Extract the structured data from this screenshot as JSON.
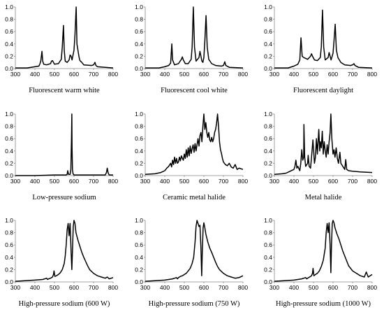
{
  "chart_data": [
    {
      "type": "line",
      "caption": "Fluorescent warm white",
      "xlim": [
        300,
        800
      ],
      "ylim": [
        0,
        1.0
      ],
      "xticks": [
        "300",
        "400",
        "500",
        "600",
        "700",
        "800"
      ],
      "yticks": [
        "0.0",
        "0.2",
        "0.4",
        "0.6",
        "0.8",
        "1.0"
      ],
      "x": [
        300,
        360,
        380,
        400,
        420,
        425,
        430,
        436,
        440,
        445,
        460,
        480,
        485,
        490,
        495,
        500,
        520,
        535,
        540,
        546,
        550,
        555,
        565,
        575,
        580,
        585,
        590,
        600,
        605,
        611,
        615,
        625,
        630,
        640,
        650,
        690,
        700,
        707,
        712,
        720,
        800
      ],
      "y": [
        0.01,
        0.01,
        0.02,
        0.03,
        0.04,
        0.07,
        0.12,
        0.28,
        0.12,
        0.07,
        0.06,
        0.08,
        0.12,
        0.13,
        0.1,
        0.07,
        0.08,
        0.15,
        0.35,
        0.7,
        0.3,
        0.12,
        0.1,
        0.14,
        0.22,
        0.2,
        0.14,
        0.3,
        0.55,
        1.0,
        0.4,
        0.2,
        0.13,
        0.1,
        0.06,
        0.05,
        0.06,
        0.1,
        0.05,
        0.03,
        0.01
      ]
    },
    {
      "type": "line",
      "caption": "Fluorescent cool white",
      "xlim": [
        300,
        800
      ],
      "ylim": [
        0,
        1.0
      ],
      "xticks": [
        "300",
        "400",
        "500",
        "600",
        "700",
        "800"
      ],
      "yticks": [
        "0.0",
        "0.2",
        "0.4",
        "0.6",
        "0.8",
        "1.0"
      ],
      "x": [
        300,
        370,
        400,
        420,
        430,
        436,
        440,
        450,
        470,
        485,
        490,
        495,
        505,
        520,
        535,
        540,
        546,
        552,
        560,
        575,
        580,
        585,
        590,
        595,
        600,
        605,
        611,
        617,
        625,
        640,
        660,
        690,
        700,
        707,
        712,
        730,
        800
      ],
      "y": [
        0.01,
        0.01,
        0.03,
        0.05,
        0.09,
        0.4,
        0.14,
        0.06,
        0.08,
        0.15,
        0.19,
        0.14,
        0.08,
        0.08,
        0.15,
        0.35,
        1.0,
        0.35,
        0.12,
        0.18,
        0.28,
        0.2,
        0.12,
        0.1,
        0.18,
        0.45,
        0.86,
        0.35,
        0.15,
        0.08,
        0.05,
        0.04,
        0.05,
        0.11,
        0.05,
        0.02,
        0.01
      ]
    },
    {
      "type": "line",
      "caption": "Fluorescent daylight",
      "xlim": [
        300,
        800
      ],
      "ylim": [
        0,
        1.0
      ],
      "xticks": [
        "300",
        "400",
        "500",
        "600",
        "700",
        "800"
      ],
      "yticks": [
        "0.0",
        "0.2",
        "0.4",
        "0.6",
        "0.8",
        "1.0"
      ],
      "x": [
        300,
        370,
        400,
        420,
        430,
        436,
        442,
        450,
        470,
        485,
        490,
        495,
        505,
        520,
        535,
        540,
        546,
        552,
        560,
        575,
        580,
        585,
        590,
        600,
        605,
        611,
        617,
        625,
        640,
        660,
        690,
        700,
        707,
        712,
        730,
        800
      ],
      "y": [
        0.01,
        0.01,
        0.04,
        0.07,
        0.14,
        0.5,
        0.2,
        0.18,
        0.15,
        0.2,
        0.24,
        0.2,
        0.14,
        0.13,
        0.18,
        0.35,
        0.95,
        0.35,
        0.14,
        0.18,
        0.26,
        0.2,
        0.14,
        0.25,
        0.45,
        0.72,
        0.3,
        0.18,
        0.1,
        0.06,
        0.05,
        0.06,
        0.08,
        0.05,
        0.02,
        0.01
      ]
    },
    {
      "type": "line",
      "caption": "Low-pressure sodium",
      "xlim": [
        300,
        800
      ],
      "ylim": [
        0,
        1.0
      ],
      "xticks": [
        "300",
        "400",
        "500",
        "600",
        "700",
        "800"
      ],
      "yticks": [
        "0.0",
        "0.2",
        "0.4",
        "0.6",
        "0.8",
        "1.0"
      ],
      "x": [
        300,
        400,
        500,
        560,
        565,
        568,
        572,
        580,
        584,
        587,
        589,
        590,
        592,
        595,
        600,
        620,
        700,
        760,
        766,
        770,
        775,
        780,
        800
      ],
      "y": [
        0.0,
        0.0,
        0.01,
        0.01,
        0.02,
        0.08,
        0.02,
        0.02,
        0.1,
        0.6,
        1.0,
        0.45,
        0.1,
        0.03,
        0.01,
        0.01,
        0.01,
        0.01,
        0.05,
        0.12,
        0.04,
        0.01,
        0.01
      ]
    },
    {
      "type": "line",
      "caption": "Ceramic metal halide",
      "xlim": [
        300,
        800
      ],
      "ylim": [
        0,
        1.0
      ],
      "xticks": [
        "300",
        "400",
        "500",
        "600",
        "700",
        "800"
      ],
      "yticks": [
        "0.0",
        "0.2",
        "0.4",
        "0.6",
        "0.8",
        "1.0"
      ],
      "x": [
        300,
        350,
        380,
        400,
        410,
        420,
        430,
        435,
        440,
        445,
        450,
        455,
        460,
        465,
        470,
        475,
        480,
        485,
        490,
        495,
        500,
        505,
        510,
        515,
        520,
        525,
        530,
        535,
        540,
        545,
        550,
        555,
        560,
        565,
        570,
        575,
        580,
        585,
        590,
        595,
        600,
        605,
        610,
        615,
        620,
        625,
        630,
        635,
        640,
        645,
        650,
        655,
        660,
        665,
        670,
        675,
        680,
        685,
        690,
        695,
        700,
        710,
        720,
        730,
        740,
        750,
        760,
        770,
        780,
        800
      ],
      "y": [
        0.02,
        0.03,
        0.05,
        0.08,
        0.12,
        0.15,
        0.2,
        0.14,
        0.25,
        0.18,
        0.3,
        0.2,
        0.28,
        0.2,
        0.22,
        0.3,
        0.24,
        0.32,
        0.28,
        0.25,
        0.35,
        0.28,
        0.42,
        0.3,
        0.45,
        0.32,
        0.48,
        0.36,
        0.44,
        0.5,
        0.38,
        0.52,
        0.4,
        0.5,
        0.6,
        0.48,
        0.65,
        0.7,
        0.55,
        0.8,
        1.0,
        0.75,
        0.86,
        0.7,
        0.62,
        0.7,
        0.58,
        0.55,
        0.62,
        0.55,
        0.6,
        0.7,
        0.75,
        0.85,
        1.0,
        0.8,
        0.55,
        0.42,
        0.36,
        0.28,
        0.22,
        0.18,
        0.16,
        0.2,
        0.14,
        0.12,
        0.18,
        0.1,
        0.12,
        0.1
      ]
    },
    {
      "type": "line",
      "caption": "Metal halide",
      "xlim": [
        300,
        800
      ],
      "ylim": [
        0,
        1.0
      ],
      "xticks": [
        "300",
        "400",
        "500",
        "600",
        "700",
        "800"
      ],
      "yticks": [
        "0.0",
        "0.2",
        "0.4",
        "0.6",
        "0.8",
        "1.0"
      ],
      "x": [
        300,
        340,
        360,
        380,
        400,
        405,
        410,
        415,
        420,
        430,
        435,
        440,
        445,
        450,
        451,
        455,
        460,
        470,
        473,
        478,
        485,
        490,
        497,
        505,
        510,
        515,
        520,
        527,
        532,
        535,
        540,
        545,
        550,
        555,
        560,
        565,
        570,
        575,
        580,
        585,
        589,
        594,
        600,
        605,
        610,
        616,
        622,
        628,
        635,
        640,
        650,
        660,
        665,
        670,
        680,
        700,
        740,
        800
      ],
      "y": [
        0.02,
        0.03,
        0.04,
        0.07,
        0.1,
        0.15,
        0.25,
        0.12,
        0.15,
        0.08,
        0.2,
        0.42,
        0.25,
        0.3,
        0.83,
        0.3,
        0.15,
        0.2,
        0.33,
        0.15,
        0.12,
        0.3,
        0.58,
        0.2,
        0.3,
        0.6,
        0.35,
        0.75,
        0.4,
        0.55,
        0.45,
        0.72,
        0.35,
        0.55,
        0.4,
        0.3,
        0.5,
        0.35,
        0.55,
        0.7,
        1.0,
        0.6,
        0.35,
        0.42,
        0.3,
        0.45,
        0.28,
        0.2,
        0.38,
        0.2,
        0.15,
        0.1,
        0.26,
        0.1,
        0.08,
        0.07,
        0.06,
        0.05
      ]
    },
    {
      "type": "line",
      "caption": "High-pressure sodium (600 W)",
      "xlim": [
        300,
        800
      ],
      "ylim": [
        0,
        1.0
      ],
      "xticks": [
        "300",
        "400",
        "500",
        "600",
        "700",
        "800"
      ],
      "yticks": [
        "0.0",
        "0.2",
        "0.4",
        "0.6",
        "0.8",
        "1.0"
      ],
      "x": [
        300,
        350,
        400,
        440,
        460,
        465,
        470,
        480,
        490,
        495,
        498,
        502,
        510,
        520,
        530,
        540,
        550,
        555,
        560,
        565,
        570,
        575,
        580,
        585,
        589,
        592,
        596,
        600,
        605,
        610,
        620,
        630,
        640,
        650,
        660,
        670,
        680,
        700,
        720,
        740,
        760,
        770,
        780,
        800
      ],
      "y": [
        0.01,
        0.02,
        0.03,
        0.04,
        0.06,
        0.04,
        0.05,
        0.06,
        0.08,
        0.12,
        0.18,
        0.09,
        0.1,
        0.12,
        0.15,
        0.2,
        0.3,
        0.42,
        0.6,
        0.85,
        0.95,
        0.75,
        0.95,
        0.5,
        0.2,
        0.5,
        0.9,
        1.0,
        0.95,
        0.8,
        0.68,
        0.58,
        0.48,
        0.4,
        0.33,
        0.26,
        0.2,
        0.14,
        0.1,
        0.08,
        0.06,
        0.08,
        0.05,
        0.07
      ]
    },
    {
      "type": "line",
      "caption": "High-pressure sodium (750 W)",
      "xlim": [
        300,
        800
      ],
      "ylim": [
        0,
        1.0
      ],
      "xticks": [
        "300",
        "400",
        "500",
        "600",
        "700",
        "800"
      ],
      "yticks": [
        "0.0",
        "0.2",
        "0.4",
        "0.6",
        "0.8",
        "1.0"
      ],
      "x": [
        300,
        350,
        400,
        440,
        460,
        465,
        470,
        480,
        490,
        500,
        510,
        520,
        530,
        540,
        548,
        555,
        560,
        565,
        570,
        575,
        580,
        585,
        589,
        592,
        596,
        600,
        605,
        610,
        620,
        630,
        640,
        650,
        660,
        670,
        680,
        700,
        720,
        740,
        760,
        780,
        800
      ],
      "y": [
        0.01,
        0.02,
        0.03,
        0.05,
        0.07,
        0.05,
        0.07,
        0.09,
        0.1,
        0.12,
        0.14,
        0.18,
        0.22,
        0.3,
        0.4,
        0.65,
        0.9,
        1.0,
        0.95,
        0.9,
        0.92,
        0.55,
        0.1,
        0.5,
        0.88,
        0.96,
        0.88,
        0.78,
        0.65,
        0.55,
        0.48,
        0.4,
        0.32,
        0.25,
        0.2,
        0.14,
        0.1,
        0.08,
        0.06,
        0.07,
        0.1
      ]
    },
    {
      "type": "line",
      "caption": "High-pressure sodium (1000 W)",
      "xlim": [
        300,
        800
      ],
      "ylim": [
        0,
        1.0
      ],
      "xticks": [
        "300",
        "400",
        "500",
        "600",
        "700",
        "800"
      ],
      "yticks": [
        "0.0",
        "0.2",
        "0.4",
        "0.6",
        "0.8",
        "1.0"
      ],
      "x": [
        300,
        350,
        400,
        440,
        460,
        465,
        470,
        480,
        490,
        495,
        498,
        502,
        510,
        520,
        530,
        540,
        550,
        560,
        565,
        570,
        575,
        580,
        585,
        589,
        592,
        596,
        600,
        605,
        610,
        620,
        630,
        640,
        650,
        660,
        670,
        680,
        700,
        720,
        740,
        760,
        770,
        780,
        800
      ],
      "y": [
        0.01,
        0.02,
        0.03,
        0.05,
        0.07,
        0.05,
        0.06,
        0.08,
        0.1,
        0.14,
        0.22,
        0.1,
        0.12,
        0.14,
        0.18,
        0.25,
        0.35,
        0.55,
        0.8,
        0.95,
        0.8,
        0.96,
        0.6,
        0.15,
        0.6,
        0.95,
        1.0,
        0.96,
        0.88,
        0.78,
        0.7,
        0.6,
        0.5,
        0.42,
        0.34,
        0.26,
        0.18,
        0.14,
        0.1,
        0.08,
        0.16,
        0.08,
        0.12
      ]
    }
  ]
}
